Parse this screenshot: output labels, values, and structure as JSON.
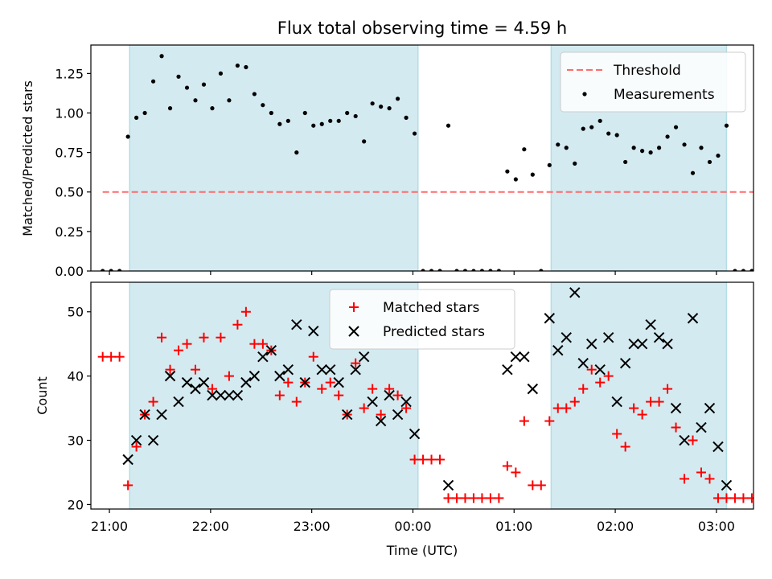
{
  "chart_data": [
    {
      "type": "scatter",
      "title": "Flux total observing time = 4.59 h",
      "xlabel": "",
      "ylabel": "Matched/Predicted stars",
      "ylim": [
        0,
        1.43
      ],
      "yticks": [
        "0.00",
        "0.25",
        "0.50",
        "0.75",
        "1.00",
        "1.25"
      ],
      "legend_position": "top-right",
      "shaded_intervals": [
        [
          "21:12",
          "00:03"
        ],
        [
          "01:22",
          "03:06"
        ]
      ],
      "threshold": {
        "name": "Threshold",
        "value": 0.5,
        "x_range": [
          "20:56",
          "03:22"
        ],
        "color": "#ff6b6b",
        "style": "dashed"
      },
      "series": [
        {
          "name": "Measurements",
          "color": "#000000",
          "points": [
            [
              "20:56",
              0.0
            ],
            [
              "21:01",
              0.0
            ],
            [
              "21:06",
              0.0
            ],
            [
              "21:11",
              0.85
            ],
            [
              "21:16",
              0.97
            ],
            [
              "21:21",
              1.0
            ],
            [
              "21:26",
              1.2
            ],
            [
              "21:31",
              1.36
            ],
            [
              "21:36",
              1.03
            ],
            [
              "21:41",
              1.23
            ],
            [
              "21:46",
              1.16
            ],
            [
              "21:51",
              1.08
            ],
            [
              "21:56",
              1.18
            ],
            [
              "22:01",
              1.03
            ],
            [
              "22:06",
              1.25
            ],
            [
              "22:11",
              1.08
            ],
            [
              "22:16",
              1.3
            ],
            [
              "22:21",
              1.29
            ],
            [
              "22:26",
              1.12
            ],
            [
              "22:31",
              1.05
            ],
            [
              "22:36",
              1.0
            ],
            [
              "22:41",
              0.93
            ],
            [
              "22:46",
              0.95
            ],
            [
              "22:51",
              0.75
            ],
            [
              "22:56",
              1.0
            ],
            [
              "23:01",
              0.92
            ],
            [
              "23:06",
              0.93
            ],
            [
              "23:11",
              0.95
            ],
            [
              "23:16",
              0.95
            ],
            [
              "23:21",
              1.0
            ],
            [
              "23:26",
              0.98
            ],
            [
              "23:31",
              0.82
            ],
            [
              "23:36",
              1.06
            ],
            [
              "23:41",
              1.04
            ],
            [
              "23:46",
              1.03
            ],
            [
              "23:51",
              1.09
            ],
            [
              "23:56",
              0.97
            ],
            [
              "00:01",
              0.87
            ],
            [
              "00:06",
              0.0
            ],
            [
              "00:11",
              0.0
            ],
            [
              "00:16",
              0.0
            ],
            [
              "00:21",
              0.92
            ],
            [
              "00:26",
              0.0
            ],
            [
              "00:31",
              0.0
            ],
            [
              "00:36",
              0.0
            ],
            [
              "00:41",
              0.0
            ],
            [
              "00:46",
              0.0
            ],
            [
              "00:51",
              0.0
            ],
            [
              "00:56",
              0.63
            ],
            [
              "01:01",
              0.58
            ],
            [
              "01:06",
              0.77
            ],
            [
              "01:11",
              0.61
            ],
            [
              "01:16",
              0.0
            ],
            [
              "01:21",
              0.67
            ],
            [
              "01:26",
              0.8
            ],
            [
              "01:31",
              0.78
            ],
            [
              "01:36",
              0.68
            ],
            [
              "01:41",
              0.9
            ],
            [
              "01:46",
              0.91
            ],
            [
              "01:51",
              0.95
            ],
            [
              "01:56",
              0.87
            ],
            [
              "02:01",
              0.86
            ],
            [
              "02:06",
              0.69
            ],
            [
              "02:11",
              0.78
            ],
            [
              "02:16",
              0.76
            ],
            [
              "02:21",
              0.75
            ],
            [
              "02:26",
              0.78
            ],
            [
              "02:31",
              0.85
            ],
            [
              "02:36",
              0.91
            ],
            [
              "02:41",
              0.8
            ],
            [
              "02:46",
              0.62
            ],
            [
              "02:51",
              0.78
            ],
            [
              "02:56",
              0.69
            ],
            [
              "03:01",
              0.73
            ],
            [
              "03:06",
              0.92
            ],
            [
              "03:11",
              0.0
            ],
            [
              "03:16",
              0.0
            ],
            [
              "03:21",
              0.0
            ]
          ]
        }
      ]
    },
    {
      "type": "scatter",
      "title": "",
      "xlabel": "Time (UTC)",
      "ylabel": "Count",
      "ylim": [
        19.3,
        54.6
      ],
      "yticks": [
        "20",
        "30",
        "40",
        "50"
      ],
      "xticks": [
        "21:00",
        "22:00",
        "23:00",
        "00:00",
        "01:00",
        "02:00",
        "03:00"
      ],
      "legend_position": "top-center",
      "shaded_intervals": [
        [
          "21:12",
          "00:03"
        ],
        [
          "01:22",
          "03:06"
        ]
      ],
      "series": [
        {
          "name": "Matched stars",
          "marker": "plus",
          "color": "#ff0000",
          "points": [
            [
              "20:56",
              43
            ],
            [
              "21:01",
              43
            ],
            [
              "21:06",
              43
            ],
            [
              "21:11",
              23
            ],
            [
              "21:16",
              29
            ],
            [
              "21:21",
              34
            ],
            [
              "21:26",
              36
            ],
            [
              "21:31",
              46
            ],
            [
              "21:36",
              41
            ],
            [
              "21:41",
              44
            ],
            [
              "21:46",
              45
            ],
            [
              "21:51",
              41
            ],
            [
              "21:56",
              46
            ],
            [
              "22:01",
              38
            ],
            [
              "22:06",
              46
            ],
            [
              "22:11",
              40
            ],
            [
              "22:16",
              48
            ],
            [
              "22:21",
              50
            ],
            [
              "22:26",
              45
            ],
            [
              "22:31",
              45
            ],
            [
              "22:36",
              44
            ],
            [
              "22:41",
              37
            ],
            [
              "22:46",
              39
            ],
            [
              "22:51",
              36
            ],
            [
              "22:56",
              39
            ],
            [
              "23:01",
              43
            ],
            [
              "23:06",
              38
            ],
            [
              "23:11",
              39
            ],
            [
              "23:16",
              37
            ],
            [
              "23:21",
              34
            ],
            [
              "23:26",
              42
            ],
            [
              "23:31",
              35
            ],
            [
              "23:36",
              38
            ],
            [
              "23:41",
              34
            ],
            [
              "23:46",
              38
            ],
            [
              "23:51",
              37
            ],
            [
              "23:56",
              35
            ],
            [
              "00:01",
              27
            ],
            [
              "00:06",
              27
            ],
            [
              "00:11",
              27
            ],
            [
              "00:16",
              27
            ],
            [
              "00:21",
              21
            ],
            [
              "00:26",
              21
            ],
            [
              "00:31",
              21
            ],
            [
              "00:36",
              21
            ],
            [
              "00:41",
              21
            ],
            [
              "00:46",
              21
            ],
            [
              "00:51",
              21
            ],
            [
              "00:56",
              26
            ],
            [
              "01:01",
              25
            ],
            [
              "01:06",
              33
            ],
            [
              "01:11",
              23
            ],
            [
              "01:16",
              23
            ],
            [
              "01:21",
              33
            ],
            [
              "01:26",
              35
            ],
            [
              "01:31",
              35
            ],
            [
              "01:36",
              36
            ],
            [
              "01:41",
              38
            ],
            [
              "01:46",
              41
            ],
            [
              "01:51",
              39
            ],
            [
              "01:56",
              40
            ],
            [
              "02:01",
              31
            ],
            [
              "02:06",
              29
            ],
            [
              "02:11",
              35
            ],
            [
              "02:16",
              34
            ],
            [
              "02:21",
              36
            ],
            [
              "02:26",
              36
            ],
            [
              "02:31",
              38
            ],
            [
              "02:36",
              32
            ],
            [
              "02:41",
              24
            ],
            [
              "02:46",
              30
            ],
            [
              "02:51",
              25
            ],
            [
              "02:56",
              24
            ],
            [
              "03:01",
              21
            ],
            [
              "03:06",
              21
            ],
            [
              "03:11",
              21
            ],
            [
              "03:16",
              21
            ],
            [
              "03:21",
              21
            ]
          ]
        },
        {
          "name": "Predicted stars",
          "marker": "x",
          "color": "#000000",
          "points": [
            [
              "21:11",
              27
            ],
            [
              "21:16",
              30
            ],
            [
              "21:21",
              34
            ],
            [
              "21:26",
              30
            ],
            [
              "21:31",
              34
            ],
            [
              "21:36",
              40
            ],
            [
              "21:41",
              36
            ],
            [
              "21:46",
              39
            ],
            [
              "21:51",
              38
            ],
            [
              "21:56",
              39
            ],
            [
              "22:01",
              37
            ],
            [
              "22:06",
              37
            ],
            [
              "22:11",
              37
            ],
            [
              "22:16",
              37
            ],
            [
              "22:21",
              39
            ],
            [
              "22:26",
              40
            ],
            [
              "22:31",
              43
            ],
            [
              "22:36",
              44
            ],
            [
              "22:41",
              40
            ],
            [
              "22:46",
              41
            ],
            [
              "22:51",
              48
            ],
            [
              "22:56",
              39
            ],
            [
              "23:01",
              47
            ],
            [
              "23:06",
              41
            ],
            [
              "23:11",
              41
            ],
            [
              "23:16",
              39
            ],
            [
              "23:21",
              34
            ],
            [
              "23:26",
              41
            ],
            [
              "23:31",
              43
            ],
            [
              "23:36",
              36
            ],
            [
              "23:41",
              33
            ],
            [
              "23:46",
              37
            ],
            [
              "23:51",
              34
            ],
            [
              "23:56",
              36
            ],
            [
              "00:01",
              31
            ],
            [
              "00:21",
              23
            ],
            [
              "00:56",
              41
            ],
            [
              "01:01",
              43
            ],
            [
              "01:06",
              43
            ],
            [
              "01:11",
              38
            ],
            [
              "01:21",
              49
            ],
            [
              "01:26",
              44
            ],
            [
              "01:31",
              46
            ],
            [
              "01:36",
              53
            ],
            [
              "01:41",
              42
            ],
            [
              "01:46",
              45
            ],
            [
              "01:51",
              41
            ],
            [
              "01:56",
              46
            ],
            [
              "02:01",
              36
            ],
            [
              "02:06",
              42
            ],
            [
              "02:11",
              45
            ],
            [
              "02:16",
              45
            ],
            [
              "02:21",
              48
            ],
            [
              "02:26",
              46
            ],
            [
              "02:31",
              45
            ],
            [
              "02:36",
              35
            ],
            [
              "02:41",
              30
            ],
            [
              "02:46",
              49
            ],
            [
              "02:51",
              32
            ],
            [
              "02:56",
              35
            ],
            [
              "03:01",
              29
            ],
            [
              "03:06",
              23
            ]
          ]
        }
      ]
    }
  ],
  "colors": {
    "shade": "#d3eaf0",
    "shade_edge": "#b5dce4",
    "threshold": "#ff6b6b",
    "matched": "#ff0000",
    "predicted": "#000000",
    "measurement": "#000000"
  }
}
